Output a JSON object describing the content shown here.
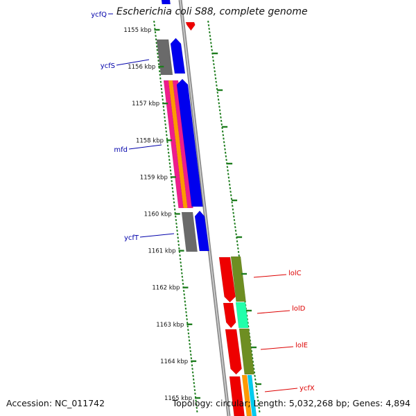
{
  "title": "Escherichia coli S88, complete genome",
  "accession_text": "Accession: NC_011742",
  "topology_text": "Topology: circular; Length: 5,032,268 bp; Genes: 4,894",
  "colors": {
    "backbone": "#8c8c8c",
    "tick": "#1e7d1e",
    "forward_cds": "#0000ee",
    "forward_gray": "#6a6a6a",
    "orange": "#ff9900",
    "magenta": "#ee1c8c",
    "reverse_red": "#ee0000",
    "olive": "#6e8e22",
    "mint": "#22ffaa",
    "cyan": "#00ccee",
    "left_label": "#0000aa",
    "right_label": "#dd0000"
  },
  "ticks": [
    "1155 kbp",
    "1156 kbp",
    "1157 kbp",
    "1158 kbp",
    "1159 kbp",
    "1160 kbp",
    "1161 kbp",
    "1162 kbp",
    "1163 kbp",
    "1164 kbp",
    "1165 kbp"
  ],
  "left_genes": [
    {
      "name": "ycfQ"
    },
    {
      "name": "ycfS"
    },
    {
      "name": "mfd"
    },
    {
      "name": "ycfT"
    }
  ],
  "right_genes": [
    {
      "name": "lolC"
    },
    {
      "name": "lolD"
    },
    {
      "name": "lolE"
    },
    {
      "name": "ycfX"
    }
  ]
}
